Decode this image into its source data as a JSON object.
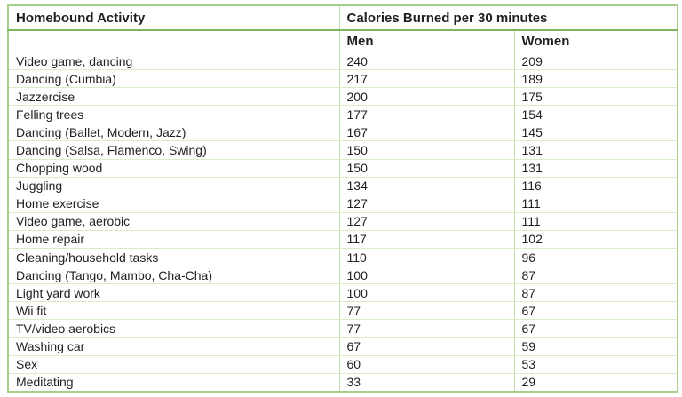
{
  "table": {
    "header": {
      "activity_label": "Homebound Activity",
      "calories_group_label": "Calories Burned per 30 minutes",
      "men_label": "Men",
      "women_label": "Women"
    },
    "colors": {
      "outer_border": "#a6cf8d",
      "strong_divider": "#7fb55e",
      "column_divider": "#bedca9",
      "row_divider": "#d7eccb",
      "text": "#1f1f1f",
      "background": "#ffffff"
    }
  },
  "chart_data": {
    "type": "table",
    "title": "Calories Burned per 30 minutes",
    "columns": [
      "Homebound Activity",
      "Men",
      "Women"
    ],
    "rows": [
      {
        "activity": "Video game, dancing",
        "men": "240",
        "women": "209"
      },
      {
        "activity": "Dancing (Cumbia)",
        "men": "217",
        "women": "189"
      },
      {
        "activity": "Jazzercise",
        "men": "200",
        "women": "175"
      },
      {
        "activity": "Felling trees",
        "men": "177",
        "women": "154"
      },
      {
        "activity": "Dancing (Ballet, Modern, Jazz)",
        "men": "167",
        "women": "145"
      },
      {
        "activity": "Dancing (Salsa, Flamenco, Swing)",
        "men": "150",
        "women": "131"
      },
      {
        "activity": "Chopping wood",
        "men": "150",
        "women": "131"
      },
      {
        "activity": "Juggling",
        "men": "134",
        "women": "116"
      },
      {
        "activity": "Home exercise",
        "men": "127",
        "women": "111"
      },
      {
        "activity": "Video game, aerobic",
        "men": "127",
        "women": "111"
      },
      {
        "activity": "Home repair",
        "men": "117",
        "women": "102"
      },
      {
        "activity": "Cleaning/household tasks",
        "men": "110",
        "women": "96"
      },
      {
        "activity": "Dancing (Tango, Mambo, Cha-Cha)",
        "men": "100",
        "women": "87"
      },
      {
        "activity": "Light yard work",
        "men": "100",
        "women": "87"
      },
      {
        "activity": "Wii fit",
        "men": "77",
        "women": "67"
      },
      {
        "activity": "TV/video aerobics",
        "men": "77",
        "women": "67"
      },
      {
        "activity": "Washing car",
        "men": "67",
        "women": "59"
      },
      {
        "activity": "Sex",
        "men": "60",
        "women": "53"
      },
      {
        "activity": "Meditating",
        "men": "33",
        "women": "29"
      }
    ]
  }
}
